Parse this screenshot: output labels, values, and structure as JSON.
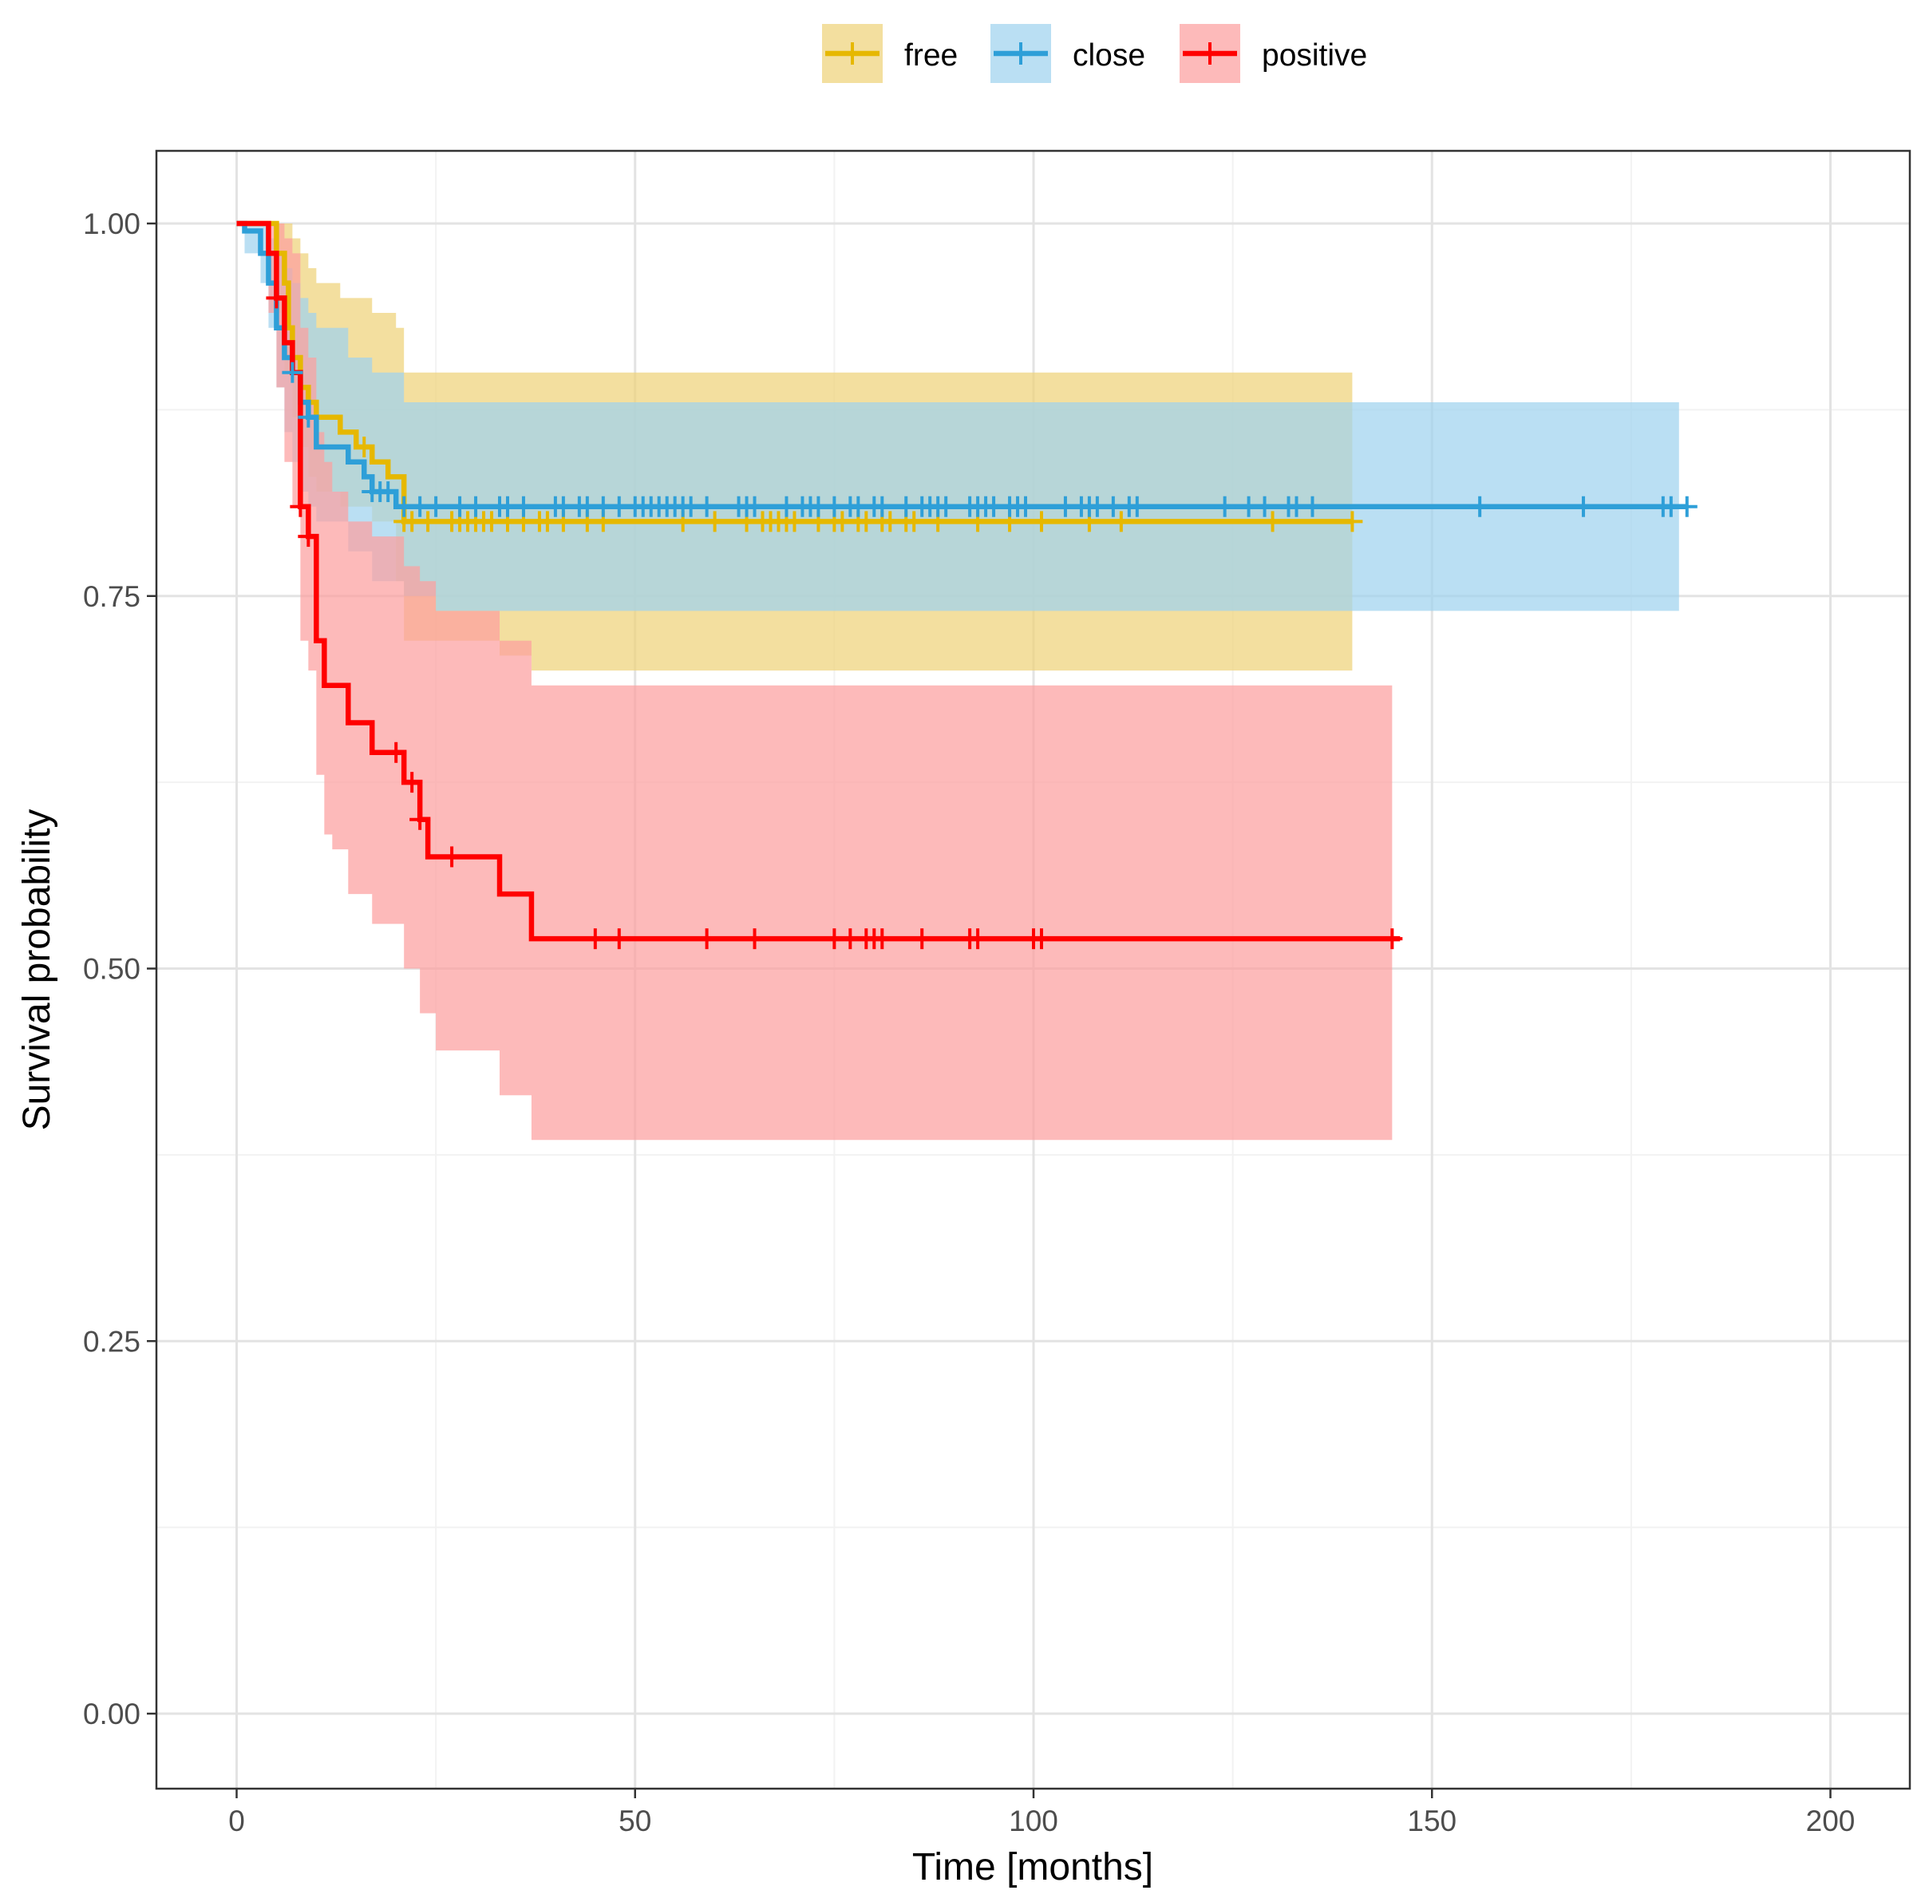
{
  "chart_data": {
    "type": "line",
    "subtype": "kaplan-meier survival curves with confidence bands",
    "xlabel": "Time [months]",
    "ylabel": "Survival probability",
    "xlim": [
      -10,
      210
    ],
    "ylim": [
      -0.05,
      1.05
    ],
    "x_ticks": [
      0,
      50,
      100,
      150,
      200
    ],
    "x_tick_labels": [
      "0",
      "50",
      "100",
      "150",
      "200"
    ],
    "y_ticks": [
      0,
      0.25,
      0.5,
      0.75,
      1.0
    ],
    "y_tick_labels": [
      "0.00",
      "0.25",
      "0.50",
      "0.75",
      "1.00"
    ],
    "grid": true,
    "legend": {
      "position": "top",
      "entries": [
        "free",
        "close",
        "positive"
      ]
    },
    "series": [
      {
        "name": "free",
        "color": "#E6B800",
        "band_fill": "#EFD27A",
        "steps": [
          [
            0,
            1.0
          ],
          [
            5,
            0.98
          ],
          [
            6,
            0.96
          ],
          [
            6.5,
            0.93
          ],
          [
            7,
            0.91
          ],
          [
            8,
            0.89
          ],
          [
            9,
            0.88
          ],
          [
            10,
            0.87
          ],
          [
            13,
            0.86
          ],
          [
            15,
            0.85
          ],
          [
            17,
            0.84
          ],
          [
            19,
            0.83
          ],
          [
            21,
            0.8
          ],
          [
            140,
            0.8
          ]
        ],
        "ci_steps": [
          [
            0,
            1.0,
            1.0
          ],
          [
            5,
            0.94,
            1.0
          ],
          [
            6,
            0.9,
            1.0
          ],
          [
            7,
            0.87,
            0.99
          ],
          [
            8,
            0.85,
            0.98
          ],
          [
            9,
            0.83,
            0.97
          ],
          [
            10,
            0.82,
            0.96
          ],
          [
            13,
            0.81,
            0.95
          ],
          [
            17,
            0.8,
            0.94
          ],
          [
            20,
            0.76,
            0.93
          ],
          [
            21,
            0.72,
            0.9
          ],
          [
            25,
            0.72,
            0.9
          ],
          [
            33,
            0.71,
            0.9
          ],
          [
            37,
            0.7,
            0.9
          ],
          [
            140,
            0.7,
            0.9
          ]
        ],
        "censor_times": [
          16,
          21,
          22,
          24,
          27,
          28,
          29,
          30,
          31,
          32,
          34,
          36,
          38,
          39,
          41,
          44,
          46,
          56,
          60,
          64,
          66,
          67,
          68,
          69,
          70,
          73,
          75,
          76,
          78,
          79,
          81,
          82,
          84,
          85,
          88,
          93,
          97,
          101,
          107,
          111,
          130,
          140
        ]
      },
      {
        "name": "close",
        "color": "#2E9FD8",
        "band_fill": "#9FD2EE",
        "steps": [
          [
            0,
            1.0
          ],
          [
            1,
            0.995
          ],
          [
            3,
            0.98
          ],
          [
            4,
            0.96
          ],
          [
            5,
            0.93
          ],
          [
            6,
            0.91
          ],
          [
            7,
            0.9
          ],
          [
            8,
            0.88
          ],
          [
            9,
            0.87
          ],
          [
            10,
            0.85
          ],
          [
            14,
            0.84
          ],
          [
            16,
            0.83
          ],
          [
            17,
            0.82
          ],
          [
            20,
            0.81
          ],
          [
            182,
            0.81
          ]
        ],
        "ci_steps": [
          [
            0,
            1.0,
            1.0
          ],
          [
            1,
            0.98,
            1.0
          ],
          [
            3,
            0.96,
            1.0
          ],
          [
            4,
            0.93,
            0.99
          ],
          [
            5,
            0.89,
            0.98
          ],
          [
            6,
            0.86,
            0.97
          ],
          [
            7,
            0.84,
            0.96
          ],
          [
            8,
            0.82,
            0.95
          ],
          [
            9,
            0.81,
            0.94
          ],
          [
            10,
            0.8,
            0.93
          ],
          [
            14,
            0.78,
            0.91
          ],
          [
            17,
            0.76,
            0.9
          ],
          [
            21,
            0.75,
            0.88
          ],
          [
            25,
            0.74,
            0.88
          ],
          [
            181,
            0.74,
            0.88
          ]
        ],
        "censor_times": [
          7,
          9,
          17,
          18,
          19,
          21,
          23,
          25,
          28,
          30,
          33,
          34,
          36,
          40,
          41,
          43,
          44,
          46,
          48,
          50,
          51,
          52,
          53,
          54,
          55,
          56,
          57,
          59,
          63,
          64,
          65,
          69,
          71,
          72,
          73,
          75,
          77,
          78,
          80,
          81,
          84,
          86,
          87,
          88,
          89,
          92,
          93,
          94,
          95,
          97,
          98,
          99,
          104,
          106,
          107,
          108,
          110,
          112,
          113,
          124,
          127,
          129,
          132,
          133,
          135,
          156,
          169,
          179,
          180,
          182
        ]
      },
      {
        "name": "positive",
        "color": "#FF0000",
        "band_fill": "#FCA0A0",
        "steps": [
          [
            0,
            1.0
          ],
          [
            4,
            0.98
          ],
          [
            5,
            0.95
          ],
          [
            6,
            0.92
          ],
          [
            7,
            0.9
          ],
          [
            8,
            0.81
          ],
          [
            9,
            0.79
          ],
          [
            10,
            0.72
          ],
          [
            11,
            0.69
          ],
          [
            14,
            0.665
          ],
          [
            17,
            0.645
          ],
          [
            21,
            0.625
          ],
          [
            23,
            0.6
          ],
          [
            24,
            0.575
          ],
          [
            33,
            0.55
          ],
          [
            37,
            0.52
          ],
          [
            146,
            0.52
          ]
        ],
        "ci_steps": [
          [
            0,
            1.0,
            1.0
          ],
          [
            4,
            0.94,
            1.0
          ],
          [
            5,
            0.89,
            1.0
          ],
          [
            6,
            0.84,
            0.99
          ],
          [
            7,
            0.81,
            0.98
          ],
          [
            8,
            0.72,
            0.93
          ],
          [
            9,
            0.7,
            0.91
          ],
          [
            10,
            0.63,
            0.86
          ],
          [
            11,
            0.59,
            0.84
          ],
          [
            12,
            0.58,
            0.82
          ],
          [
            14,
            0.55,
            0.8
          ],
          [
            17,
            0.53,
            0.79
          ],
          [
            21,
            0.5,
            0.77
          ],
          [
            23,
            0.47,
            0.76
          ],
          [
            25,
            0.445,
            0.74
          ],
          [
            33,
            0.415,
            0.72
          ],
          [
            37,
            0.385,
            0.69
          ],
          [
            145,
            0.385,
            0.69
          ]
        ],
        "censor_times": [
          5,
          8,
          9,
          20,
          22,
          23,
          27,
          45,
          48,
          59,
          65,
          75,
          77,
          79,
          80,
          81,
          86,
          92,
          93,
          100,
          101,
          145
        ]
      }
    ]
  }
}
